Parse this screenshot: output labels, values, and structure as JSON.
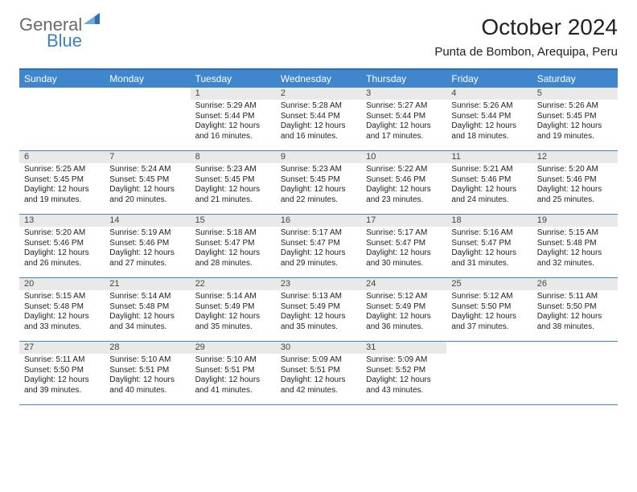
{
  "brand": {
    "part1": "General",
    "part2": "Blue"
  },
  "title": "October 2024",
  "location": "Punta de Bombon, Arequipa, Peru",
  "daynames": [
    "Sunday",
    "Monday",
    "Tuesday",
    "Wednesday",
    "Thursday",
    "Friday",
    "Saturday"
  ],
  "colors": {
    "header_bar": "#3f86cc",
    "week_divider": "#3f86cc",
    "daynum_bg": "#e9e9e9",
    "text": "#222222",
    "logo_gray": "#6a6a6a",
    "logo_blue": "#3b7fc4"
  },
  "weeks": [
    [
      {
        "blank": true
      },
      {
        "blank": true
      },
      {
        "day": "1",
        "sunrise": "5:29 AM",
        "sunset": "5:44 PM",
        "daylight": "12 hours and 16 minutes."
      },
      {
        "day": "2",
        "sunrise": "5:28 AM",
        "sunset": "5:44 PM",
        "daylight": "12 hours and 16 minutes."
      },
      {
        "day": "3",
        "sunrise": "5:27 AM",
        "sunset": "5:44 PM",
        "daylight": "12 hours and 17 minutes."
      },
      {
        "day": "4",
        "sunrise": "5:26 AM",
        "sunset": "5:44 PM",
        "daylight": "12 hours and 18 minutes."
      },
      {
        "day": "5",
        "sunrise": "5:26 AM",
        "sunset": "5:45 PM",
        "daylight": "12 hours and 19 minutes."
      }
    ],
    [
      {
        "day": "6",
        "sunrise": "5:25 AM",
        "sunset": "5:45 PM",
        "daylight": "12 hours and 19 minutes."
      },
      {
        "day": "7",
        "sunrise": "5:24 AM",
        "sunset": "5:45 PM",
        "daylight": "12 hours and 20 minutes."
      },
      {
        "day": "8",
        "sunrise": "5:23 AM",
        "sunset": "5:45 PM",
        "daylight": "12 hours and 21 minutes."
      },
      {
        "day": "9",
        "sunrise": "5:23 AM",
        "sunset": "5:45 PM",
        "daylight": "12 hours and 22 minutes."
      },
      {
        "day": "10",
        "sunrise": "5:22 AM",
        "sunset": "5:46 PM",
        "daylight": "12 hours and 23 minutes."
      },
      {
        "day": "11",
        "sunrise": "5:21 AM",
        "sunset": "5:46 PM",
        "daylight": "12 hours and 24 minutes."
      },
      {
        "day": "12",
        "sunrise": "5:20 AM",
        "sunset": "5:46 PM",
        "daylight": "12 hours and 25 minutes."
      }
    ],
    [
      {
        "day": "13",
        "sunrise": "5:20 AM",
        "sunset": "5:46 PM",
        "daylight": "12 hours and 26 minutes."
      },
      {
        "day": "14",
        "sunrise": "5:19 AM",
        "sunset": "5:46 PM",
        "daylight": "12 hours and 27 minutes."
      },
      {
        "day": "15",
        "sunrise": "5:18 AM",
        "sunset": "5:47 PM",
        "daylight": "12 hours and 28 minutes."
      },
      {
        "day": "16",
        "sunrise": "5:17 AM",
        "sunset": "5:47 PM",
        "daylight": "12 hours and 29 minutes."
      },
      {
        "day": "17",
        "sunrise": "5:17 AM",
        "sunset": "5:47 PM",
        "daylight": "12 hours and 30 minutes."
      },
      {
        "day": "18",
        "sunrise": "5:16 AM",
        "sunset": "5:47 PM",
        "daylight": "12 hours and 31 minutes."
      },
      {
        "day": "19",
        "sunrise": "5:15 AM",
        "sunset": "5:48 PM",
        "daylight": "12 hours and 32 minutes."
      }
    ],
    [
      {
        "day": "20",
        "sunrise": "5:15 AM",
        "sunset": "5:48 PM",
        "daylight": "12 hours and 33 minutes."
      },
      {
        "day": "21",
        "sunrise": "5:14 AM",
        "sunset": "5:48 PM",
        "daylight": "12 hours and 34 minutes."
      },
      {
        "day": "22",
        "sunrise": "5:14 AM",
        "sunset": "5:49 PM",
        "daylight": "12 hours and 35 minutes."
      },
      {
        "day": "23",
        "sunrise": "5:13 AM",
        "sunset": "5:49 PM",
        "daylight": "12 hours and 35 minutes."
      },
      {
        "day": "24",
        "sunrise": "5:12 AM",
        "sunset": "5:49 PM",
        "daylight": "12 hours and 36 minutes."
      },
      {
        "day": "25",
        "sunrise": "5:12 AM",
        "sunset": "5:50 PM",
        "daylight": "12 hours and 37 minutes."
      },
      {
        "day": "26",
        "sunrise": "5:11 AM",
        "sunset": "5:50 PM",
        "daylight": "12 hours and 38 minutes."
      }
    ],
    [
      {
        "day": "27",
        "sunrise": "5:11 AM",
        "sunset": "5:50 PM",
        "daylight": "12 hours and 39 minutes."
      },
      {
        "day": "28",
        "sunrise": "5:10 AM",
        "sunset": "5:51 PM",
        "daylight": "12 hours and 40 minutes."
      },
      {
        "day": "29",
        "sunrise": "5:10 AM",
        "sunset": "5:51 PM",
        "daylight": "12 hours and 41 minutes."
      },
      {
        "day": "30",
        "sunrise": "5:09 AM",
        "sunset": "5:51 PM",
        "daylight": "12 hours and 42 minutes."
      },
      {
        "day": "31",
        "sunrise": "5:09 AM",
        "sunset": "5:52 PM",
        "daylight": "12 hours and 43 minutes."
      },
      {
        "blank": true
      },
      {
        "blank": true
      }
    ]
  ],
  "labels": {
    "sunrise": "Sunrise: ",
    "sunset": "Sunset: ",
    "daylight": "Daylight: "
  }
}
